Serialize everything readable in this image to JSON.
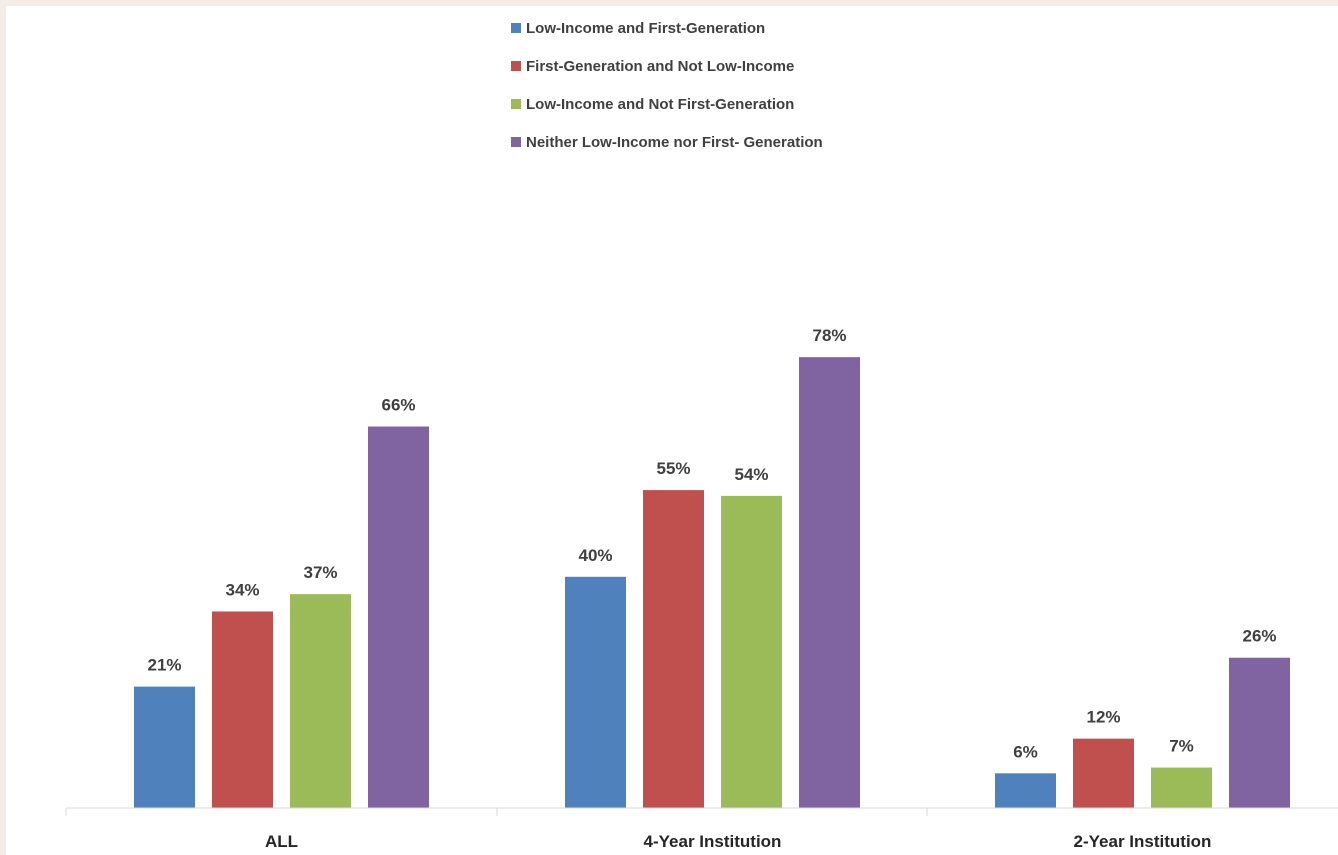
{
  "chart_data": {
    "type": "bar",
    "title": "",
    "xlabel": "",
    "ylabel": "",
    "ylim": [
      0,
      100
    ],
    "grid": false,
    "legend_position": "top-center",
    "categories": [
      "ALL",
      "4-Year Institution",
      "2-Year Institution"
    ],
    "series": [
      {
        "name": "Low-Income and First-Generation",
        "color": "#4f81bd",
        "values": [
          21,
          40,
          6
        ],
        "labels": [
          "21%",
          "40%",
          "6%"
        ]
      },
      {
        "name": "First-Generation and Not Low-Income",
        "color": "#c0504d",
        "values": [
          34,
          55,
          12
        ],
        "labels": [
          "34%",
          "55%",
          "12%"
        ]
      },
      {
        "name": "Low-Income and Not First-Generation",
        "color": "#9bbb59",
        "values": [
          37,
          54,
          7
        ],
        "labels": [
          "37%",
          "54%",
          "7%"
        ]
      },
      {
        "name": "Neither Low-Income nor First- Generation",
        "color": "#8064a2",
        "values": [
          66,
          78,
          26
        ],
        "labels": [
          "66%",
          "78%",
          "26%"
        ]
      }
    ]
  }
}
